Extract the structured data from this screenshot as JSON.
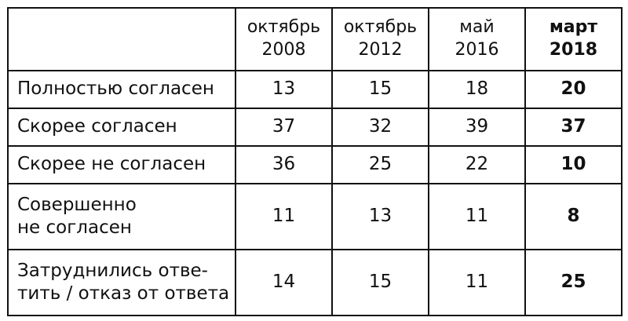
{
  "table": {
    "header": {
      "corner": "",
      "columns": [
        {
          "month": "октябрь",
          "year": "2008",
          "bold": false
        },
        {
          "month": "октябрь",
          "year": "2012",
          "bold": false
        },
        {
          "month": "май",
          "year": "2016",
          "bold": false
        },
        {
          "month": "март",
          "year": "2018",
          "bold": true
        }
      ]
    },
    "rows": [
      {
        "label_lines": [
          "Полностью согласен"
        ],
        "values": [
          "13",
          "15",
          "18",
          "20"
        ]
      },
      {
        "label_lines": [
          "Скорее согласен"
        ],
        "values": [
          "37",
          "32",
          "39",
          "37"
        ]
      },
      {
        "label_lines": [
          "Скорее не согласен"
        ],
        "values": [
          "36",
          "25",
          "22",
          "10"
        ]
      },
      {
        "label_lines": [
          "Совершенно",
          "не согласен"
        ],
        "values": [
          "11",
          "13",
          "11",
          "8"
        ]
      },
      {
        "label_lines": [
          "Затруднились отве-",
          "тить / отказ от ответа"
        ],
        "values": [
          "14",
          "15",
          "11",
          "25"
        ]
      }
    ]
  }
}
